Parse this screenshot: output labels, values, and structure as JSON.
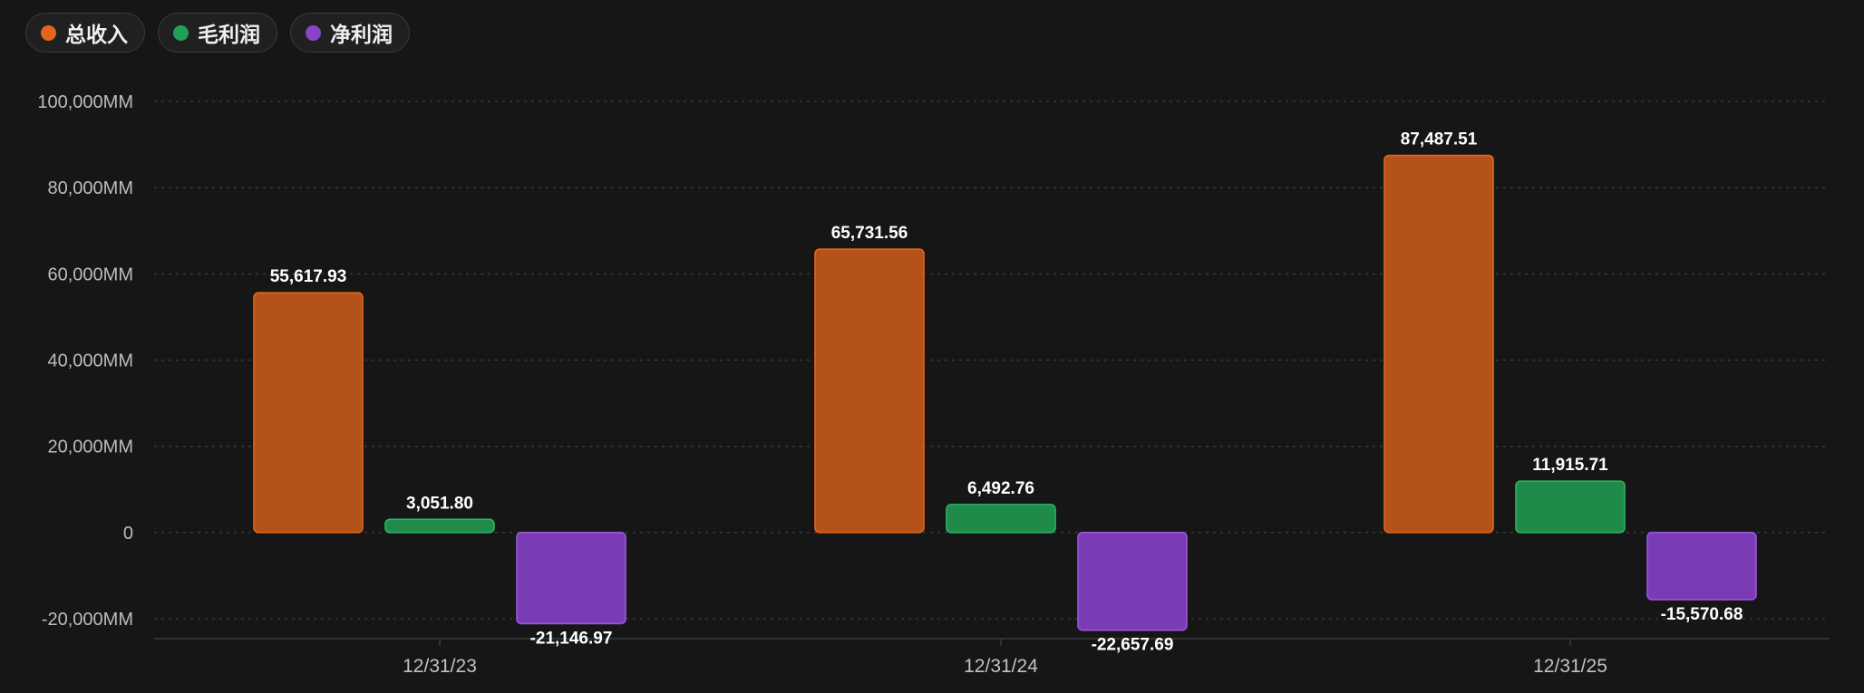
{
  "legend": [
    {
      "label": "总收入",
      "color": "#e2661a"
    },
    {
      "label": "毛利润",
      "color": "#22a055"
    },
    {
      "label": "净利润",
      "color": "#8a44c8"
    }
  ],
  "colors": {
    "background": "#161616",
    "grid": "#3e3e3e",
    "revenue_fill": "#b4521a",
    "revenue_stroke": "#e2661a",
    "gross_fill": "#1f8a49",
    "gross_stroke": "#2bb563",
    "net_fill": "#7a3cb4",
    "net_stroke": "#9a55db"
  },
  "chart_data": {
    "type": "bar",
    "categories": [
      "12/31/23",
      "12/31/24",
      "12/31/25"
    ],
    "series": [
      {
        "name": "总收入",
        "values": [
          55617.93,
          65731.56,
          87487.51
        ],
        "labels": [
          "55,617.93",
          "65,731.56",
          "87,487.51"
        ]
      },
      {
        "name": "毛利润",
        "values": [
          3051.8,
          6492.76,
          11915.71
        ],
        "labels": [
          "3,051.80",
          "6,492.76",
          "11,915.71"
        ]
      },
      {
        "name": "净利润",
        "values": [
          -21146.97,
          -22657.69,
          -15570.68
        ],
        "labels": [
          "-21,146.97",
          "-22,657.69",
          "-15,570.68"
        ]
      }
    ],
    "ylim": [
      -20000,
      100000
    ],
    "yticks": [
      {
        "value": 100000,
        "label": "100,000MM"
      },
      {
        "value": 80000,
        "label": "80,000MM"
      },
      {
        "value": 60000,
        "label": "60,000MM"
      },
      {
        "value": 40000,
        "label": "40,000MM"
      },
      {
        "value": 20000,
        "label": "20,000MM"
      },
      {
        "value": 0,
        "label": "0"
      },
      {
        "value": -20000,
        "label": "-20,000MM"
      }
    ],
    "grid": true,
    "legend_position": "top-left"
  }
}
